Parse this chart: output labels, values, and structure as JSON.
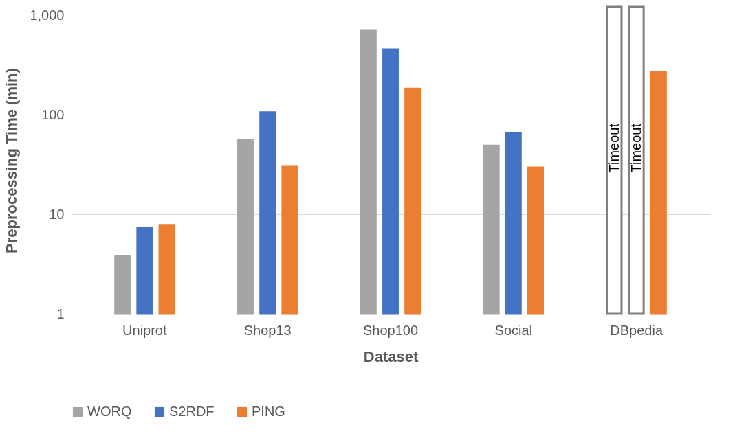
{
  "chart_data": {
    "type": "bar",
    "xlabel": "Dataset",
    "ylabel": "Preprocessing Time (min)",
    "categories": [
      "Uniprot",
      "Shop13",
      "Shop100",
      "Social",
      "DBpedia"
    ],
    "series": [
      {
        "name": "WORQ",
        "color": "#a5a5a5",
        "colors": [
          "#a5a5a5",
          "#a5a5a5",
          "#a5a5a5",
          "#a5a5a5",
          "#ffffff"
        ],
        "values": [
          3.8,
          56,
          710,
          49,
          1220
        ],
        "value_labels": [
          null,
          null,
          null,
          null,
          "Timeout"
        ]
      },
      {
        "name": "S2RDF",
        "color": "#4472c4",
        "colors": [
          "#4472c4",
          "#4472c4",
          "#4472c4",
          "#4472c4",
          "#ffffff"
        ],
        "values": [
          7.3,
          106,
          455,
          66,
          1220
        ],
        "value_labels": [
          null,
          null,
          null,
          null,
          "Timeout"
        ]
      },
      {
        "name": "PING",
        "color": "#ed7d31",
        "values": [
          7.8,
          30,
          183,
          29.5,
          269
        ]
      }
    ],
    "log": true,
    "ylim": [
      1,
      1220
    ],
    "yticks": [
      1,
      10,
      100,
      {
        "value": 1000,
        "label": "1,000"
      }
    ],
    "grid": "y",
    "legend": "bottom"
  }
}
